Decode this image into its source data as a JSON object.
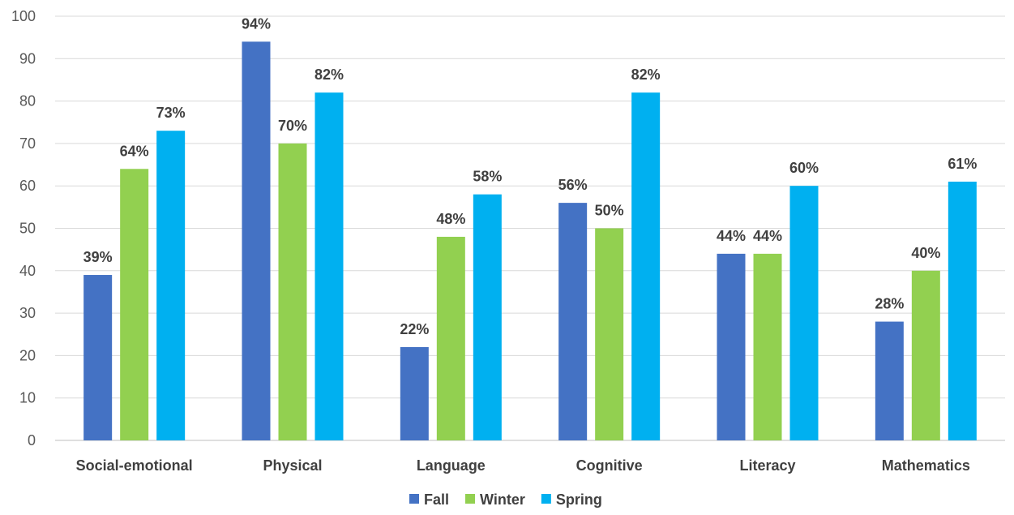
{
  "chart_data": {
    "type": "bar",
    "categories": [
      "Social-emotional",
      "Physical",
      "Language",
      "Cognitive",
      "Literacy",
      "Mathematics"
    ],
    "series": [
      {
        "name": "Fall",
        "color": "#4472C4",
        "values": [
          39,
          94,
          22,
          56,
          44,
          28
        ],
        "labels": [
          "39%",
          "94%",
          "22%",
          "56%",
          "44%",
          "28%"
        ]
      },
      {
        "name": "Winter",
        "color": "#92D050",
        "values": [
          64,
          70,
          48,
          50,
          44,
          40
        ],
        "labels": [
          "64%",
          "70%",
          "48%",
          "50%",
          "44%",
          "40%"
        ]
      },
      {
        "name": "Spring",
        "color": "#00B0F0",
        "values": [
          73,
          82,
          58,
          82,
          60,
          61
        ],
        "labels": [
          "73%",
          "82%",
          "58%",
          "82%",
          "60%",
          "61%"
        ]
      }
    ],
    "yticks": [
      "0",
      "10",
      "20",
      "30",
      "40",
      "50",
      "60",
      "70",
      "80",
      "90",
      "100"
    ],
    "ylim": [
      0,
      100
    ],
    "grid": true,
    "legend_position": "bottom"
  }
}
